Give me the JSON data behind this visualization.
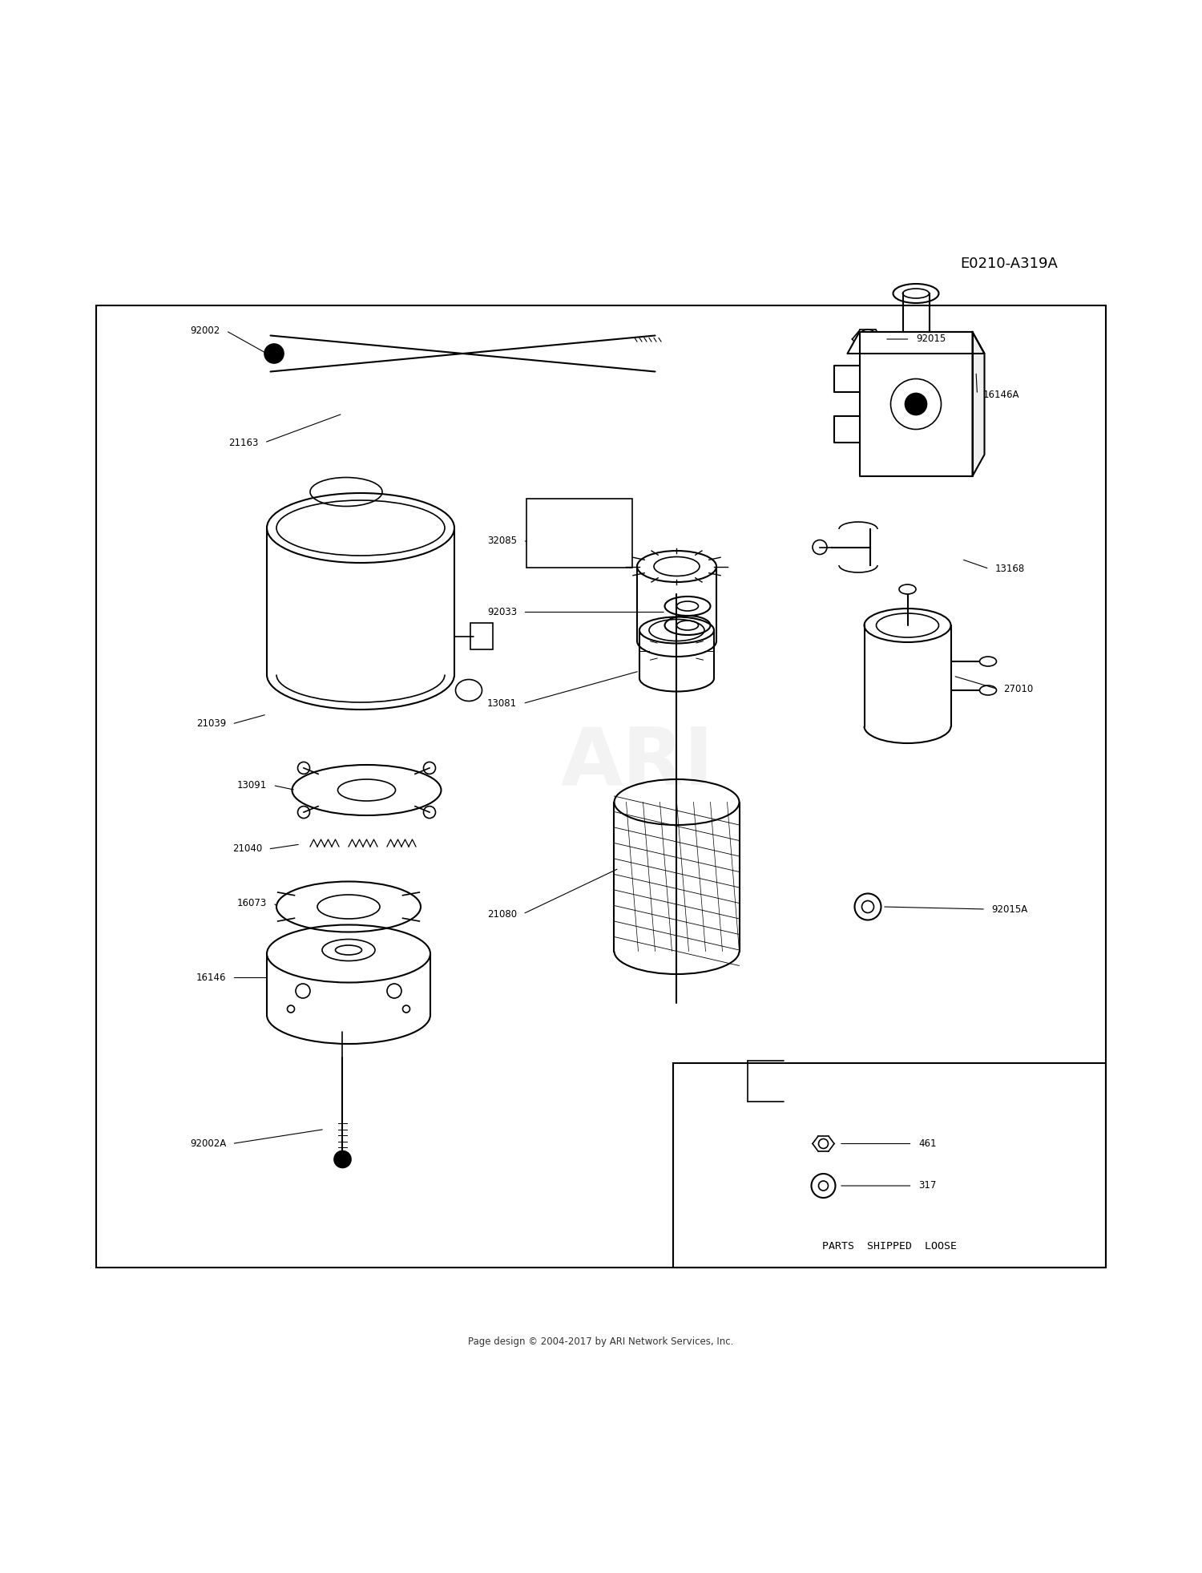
{
  "diagram_id": "E0210-A319A",
  "footer": "Page design © 2004-2017 by ARI Network Services, Inc.",
  "background_color": "#ffffff",
  "border_color": "#000000",
  "text_color": "#000000",
  "watermark": "ARI"
}
